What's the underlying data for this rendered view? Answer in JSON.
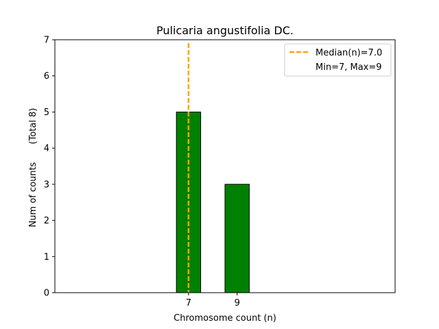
{
  "chart_data": {
    "type": "bar",
    "title": "Pulicaria angustifolia DC.",
    "xlabel": "Chromosome count (n)",
    "ylabel": "Num of counts",
    "ylabel_note": "(Total 8)",
    "x_ticks": [
      7,
      9
    ],
    "y_ticks": [
      0,
      1,
      2,
      3,
      4,
      5,
      6,
      7
    ],
    "ylim": [
      0,
      7
    ],
    "xlim": [
      1.5,
      15.5
    ],
    "bars": [
      {
        "x": 7,
        "value": 5
      },
      {
        "x": 9,
        "value": 3
      }
    ],
    "bar_color": "#008000",
    "bar_edge_color": "#000000",
    "baseline_end_x": 14,
    "median": 7.0,
    "median_color": "#FFA500",
    "legend": {
      "position": "top-right",
      "entries": [
        "Median(n)=7.0",
        "Min=7, Max=9"
      ]
    },
    "grid": false
  }
}
